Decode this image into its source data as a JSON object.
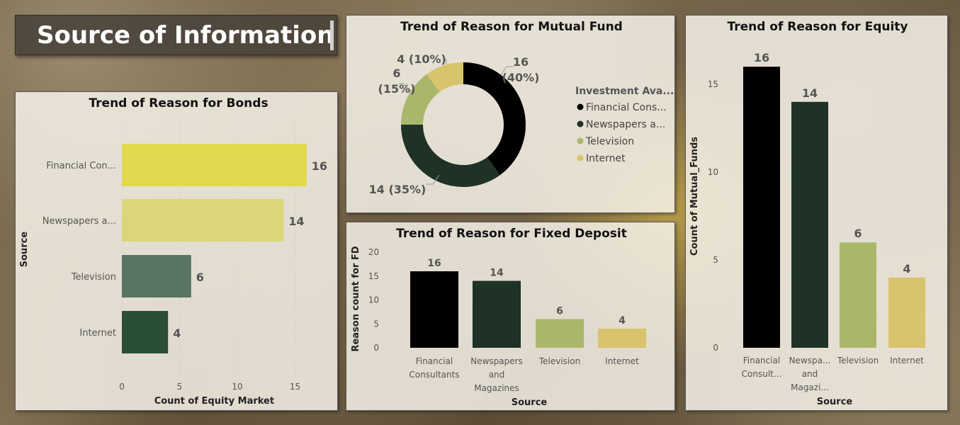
{
  "page": {
    "title": "Source of Information"
  },
  "colors": {
    "financial_consultants": "#000000",
    "newspapers_and_magazines": "#1e3226",
    "television": "#a9b76b",
    "internet": "#d8c46c",
    "bonds_bar1": "#e0d94e",
    "bonds_bar2": "#dbd679",
    "bonds_bar3": "#587463",
    "bonds_bar4": "#2b4f36"
  },
  "chart_data": [
    {
      "id": "bonds",
      "type": "bar",
      "orientation": "horizontal",
      "title": "Trend of Reason for Bonds",
      "xlabel": "Count of Equity Market",
      "ylabel": "Source",
      "categories": [
        "Financial Con...",
        "Newspapers a...",
        "Television",
        "Internet"
      ],
      "values": [
        16,
        14,
        6,
        4
      ],
      "data_labels": [
        "16",
        "14",
        "6",
        "4"
      ],
      "xlim": [
        0,
        16
      ],
      "xticks": [
        0,
        5,
        10,
        15
      ],
      "xtick_labels": [
        "0",
        "5",
        "10",
        "15"
      ],
      "grid": true
    },
    {
      "id": "mutual_fund",
      "type": "pie",
      "variant": "donut",
      "title": "Trend of Reason for Mutual Fund",
      "legend_title": "Investment Ava...",
      "legend_position": "right",
      "labels": [
        "Financial Cons...",
        "Newspapers a...",
        "Television",
        "Internet"
      ],
      "values": [
        16,
        14,
        6,
        4
      ],
      "data_labels": [
        [
          "16",
          "(40%)"
        ],
        [
          "14 (35%)"
        ],
        [
          "6",
          "(15%)"
        ],
        [
          "4 (10%)"
        ]
      ]
    },
    {
      "id": "fixed_deposit",
      "type": "bar",
      "title": "Trend of Reason for Fixed Deposit",
      "xlabel": "Source",
      "ylabel": "Reason count for FD",
      "categories": [
        [
          "Financial",
          "Consultants"
        ],
        [
          "Newspapers",
          "and",
          "Magazines"
        ],
        [
          "Television"
        ],
        [
          "Internet"
        ]
      ],
      "values": [
        16,
        14,
        6,
        4
      ],
      "data_labels": [
        "16",
        "14",
        "6",
        "4"
      ],
      "ylim": [
        0,
        20
      ],
      "yticks": [
        0,
        5,
        10,
        15,
        20
      ],
      "ytick_labels": [
        "0",
        "5",
        "10",
        "15",
        "20"
      ],
      "grid": false
    },
    {
      "id": "equity",
      "type": "bar",
      "title": "Trend of Reason for Equity",
      "xlabel": "Source",
      "ylabel": "Count of Mutual_Funds",
      "categories": [
        [
          "Financial",
          "Consult..."
        ],
        [
          "Newspa...",
          "and",
          "Magazi..."
        ],
        [
          "Television"
        ],
        [
          "Internet"
        ]
      ],
      "values": [
        16,
        14,
        6,
        4
      ],
      "data_labels": [
        "16",
        "14",
        "6",
        "4"
      ],
      "ylim": [
        0,
        16
      ],
      "yticks": [
        0,
        5,
        10,
        15
      ],
      "ytick_labels": [
        "0",
        "5",
        "10",
        "15"
      ],
      "grid": false
    }
  ]
}
